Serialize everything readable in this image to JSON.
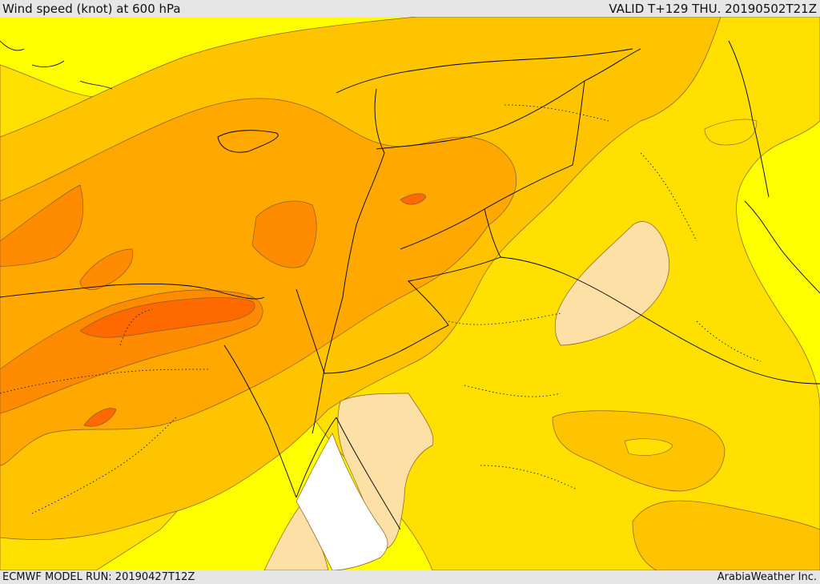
{
  "header": {
    "title": "Wind speed (knot) at 600 hPa",
    "valid_time": "VALID T+129 THU. 20190502T21Z"
  },
  "footer": {
    "model_run": "ECMWF MODEL RUN: 20190427T12Z",
    "credit": "ArabiaWeather Inc."
  },
  "map": {
    "variable": "wind speed",
    "unit": "knot",
    "level": "600 hPa",
    "colors": {
      "white": "#ffffff",
      "pale_tan": "#fde0a6",
      "yellow": "#ffff00",
      "light_yellow_orange": "#ffe000",
      "gold": "#ffc400",
      "light_orange": "#ffa800",
      "orange": "#ff8c00",
      "dark_orange": "#ff6a00",
      "contour_line": "#8a5a20",
      "border_line": "#000000"
    }
  }
}
